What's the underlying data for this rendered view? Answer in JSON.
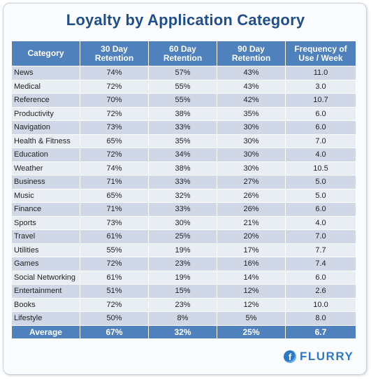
{
  "chart_data": {
    "type": "table",
    "title": "Loyalty by Application Category",
    "columns": [
      "Category",
      "30 Day Retention",
      "60 Day Retention",
      "90 Day Retention",
      "Frequency of Use / Week"
    ],
    "rows": [
      [
        "News",
        "74%",
        "57%",
        "43%",
        "11.0"
      ],
      [
        "Medical",
        "72%",
        "55%",
        "43%",
        "3.0"
      ],
      [
        "Reference",
        "70%",
        "55%",
        "42%",
        "10.7"
      ],
      [
        "Productivity",
        "72%",
        "38%",
        "35%",
        "6.0"
      ],
      [
        "Navigation",
        "73%",
        "33%",
        "30%",
        "6.0"
      ],
      [
        "Health & Fitness",
        "65%",
        "35%",
        "30%",
        "7.0"
      ],
      [
        "Education",
        "72%",
        "34%",
        "30%",
        "4.0"
      ],
      [
        "Weather",
        "74%",
        "38%",
        "30%",
        "10.5"
      ],
      [
        "Business",
        "71%",
        "33%",
        "27%",
        "5.0"
      ],
      [
        "Music",
        "65%",
        "32%",
        "26%",
        "5.0"
      ],
      [
        "Finance",
        "71%",
        "33%",
        "26%",
        "6.0"
      ],
      [
        "Sports",
        "73%",
        "30%",
        "21%",
        "4.0"
      ],
      [
        "Travel",
        "61%",
        "25%",
        "20%",
        "7.0"
      ],
      [
        "Utilities",
        "55%",
        "19%",
        "17%",
        "7.7"
      ],
      [
        "Games",
        "72%",
        "23%",
        "16%",
        "7.4"
      ],
      [
        "Social Networking",
        "61%",
        "19%",
        "14%",
        "6.0"
      ],
      [
        "Entertainment",
        "51%",
        "15%",
        "12%",
        "2.6"
      ],
      [
        "Books",
        "72%",
        "23%",
        "12%",
        "10.0"
      ],
      [
        "Lifestyle",
        "50%",
        "8%",
        "5%",
        "8.0"
      ]
    ],
    "average": [
      "Average",
      "67%",
      "32%",
      "25%",
      "6.7"
    ],
    "header_color": "#4f81bd",
    "row_colors": [
      "#d0d8e8",
      "#e9edf4"
    ]
  },
  "logo": {
    "text": "FLURRY",
    "mark": "f",
    "icon": "flurry-logo-icon"
  }
}
